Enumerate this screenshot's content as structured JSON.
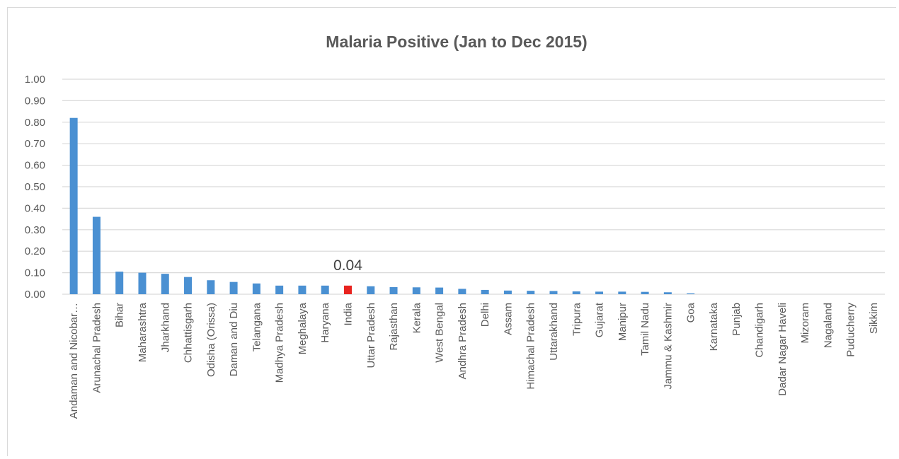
{
  "chart_data": {
    "type": "bar",
    "title": "Malaria Positive (Jan to Dec 2015)",
    "xlabel": "",
    "ylabel": "",
    "ylim": [
      0,
      1.0
    ],
    "yticks": [
      "0.00",
      "0.10",
      "0.20",
      "0.30",
      "0.40",
      "0.50",
      "0.60",
      "0.70",
      "0.80",
      "0.90",
      "1.00"
    ],
    "grid": true,
    "legend": "none",
    "colors": {
      "default": "#4a90d2",
      "highlight": "#e8231f",
      "grid": "#d9d9d9",
      "axis_text": "#595959"
    },
    "highlight_category": "India",
    "categories": [
      "Andaman and Nicobar…",
      "Arunachal Pradesh",
      "Bihar",
      "Maharashtra",
      "Jharkhand",
      "Chhattisgarh",
      "Odisha (Orissa)",
      "Daman and Diu",
      "Telangana",
      "Madhya Pradesh",
      "Meghalaya",
      "Haryana",
      "India",
      "Uttar Pradesh",
      "Rajasthan",
      "Kerala",
      "West Bengal",
      "Andhra Pradesh",
      "Delhi",
      "Assam",
      "Himachal Pradesh",
      "Uttarakhand",
      "Tripura",
      "Gujarat",
      "Manipur",
      "Tamil Nadu",
      "Jammu & Kashmir",
      "Goa",
      "Karnataka",
      "Punjab",
      "Chandigarh",
      "Dadar Nagar Haveli",
      "Mizoram",
      "Nagaland",
      "Puducherry",
      "Sikkim"
    ],
    "values": [
      0.82,
      0.36,
      0.105,
      0.1,
      0.095,
      0.08,
      0.065,
      0.057,
      0.05,
      0.04,
      0.04,
      0.04,
      0.04,
      0.037,
      0.033,
      0.032,
      0.031,
      0.025,
      0.02,
      0.017,
      0.016,
      0.015,
      0.013,
      0.012,
      0.012,
      0.011,
      0.009,
      0.004,
      0.0,
      0.0,
      0.0,
      0.0,
      0.0,
      0.0,
      0.0,
      0.0
    ],
    "annotations": [
      {
        "category": "India",
        "text": "0.04"
      }
    ]
  }
}
